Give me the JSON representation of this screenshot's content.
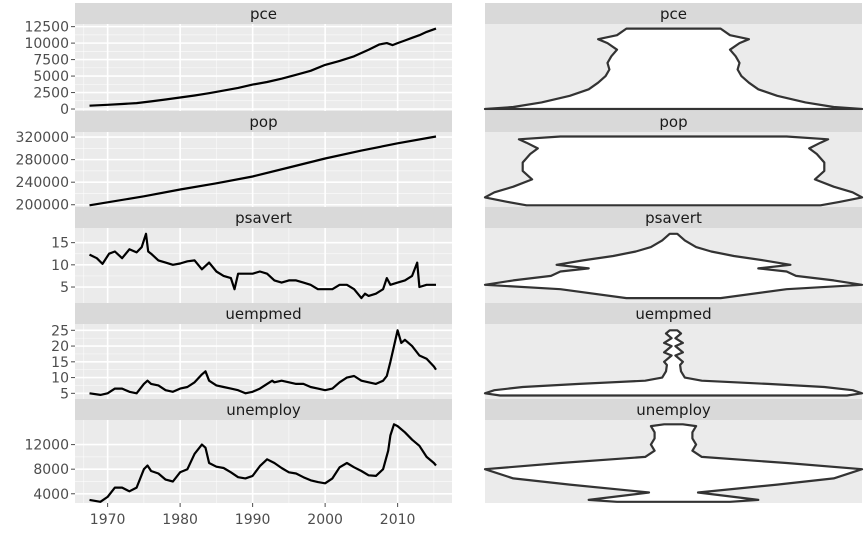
{
  "chart_data": [
    {
      "type": "line",
      "facets": [
        {
          "name": "pce",
          "ylim": [
            -300,
            12900
          ],
          "yticks": [
            0,
            2500,
            5000,
            7500,
            10000,
            12500
          ],
          "x": [
            1967.5,
            1970,
            1972,
            1974,
            1976,
            1978,
            1980,
            1982,
            1984,
            1986,
            1988,
            1990,
            1992,
            1994,
            1996,
            1998,
            2000,
            2001,
            2002,
            2004,
            2006,
            2007.5,
            2008.5,
            2009.3,
            2010,
            2011,
            2012,
            2013,
            2014,
            2015.3
          ],
          "values": [
            500,
            640,
            760,
            900,
            1150,
            1450,
            1750,
            2050,
            2400,
            2800,
            3200,
            3700,
            4100,
            4600,
            5200,
            5800,
            6700,
            7000,
            7300,
            8000,
            9000,
            9800,
            10000,
            9700,
            10000,
            10400,
            10800,
            11200,
            11700,
            12200
          ]
        },
        {
          "name": "pop",
          "ylim": [
            196000,
            329000
          ],
          "yticks": [
            200000,
            240000,
            280000,
            320000
          ],
          "x": [
            1967.5,
            1975,
            1980,
            1985,
            1990,
            1995,
            2000,
            2005,
            2010,
            2015.3
          ],
          "values": [
            199000,
            215000,
            227000,
            238000,
            250000,
            266000,
            282000,
            296000,
            309000,
            321000
          ]
        },
        {
          "name": "psavert",
          "ylim": [
            1.4,
            18.3
          ],
          "yticks": [
            5,
            10,
            15
          ],
          "x": [
            1967.5,
            1968.5,
            1969.3,
            1970.2,
            1971,
            1972,
            1973,
            1974,
            1974.7,
            1975.3,
            1975.6,
            1976,
            1977,
            1978,
            1979,
            1980,
            1981,
            1982,
            1983,
            1984,
            1985,
            1986,
            1987,
            1987.5,
            1988,
            1989,
            1990,
            1991,
            1992,
            1993,
            1994,
            1995,
            1996,
            1997,
            1998,
            1999,
            2000,
            2001,
            2002,
            2003,
            2004,
            2005,
            2005.5,
            2006,
            2007,
            2008,
            2008.5,
            2009,
            2010,
            2011,
            2012,
            2012.7,
            2013,
            2014,
            2015.3
          ],
          "values": [
            12.3,
            11.5,
            10.2,
            12.5,
            13.0,
            11.5,
            13.5,
            12.8,
            14.0,
            17.0,
            13.0,
            12.5,
            11.0,
            10.5,
            10.0,
            10.3,
            10.8,
            11.0,
            9.0,
            10.5,
            8.5,
            7.5,
            7.0,
            4.5,
            8.0,
            8.0,
            8.0,
            8.5,
            8.0,
            6.5,
            6.0,
            6.5,
            6.5,
            6.0,
            5.5,
            4.5,
            4.5,
            4.5,
            5.5,
            5.5,
            4.5,
            2.5,
            3.5,
            3.0,
            3.5,
            4.5,
            7.0,
            5.5,
            6.0,
            6.5,
            7.5,
            10.5,
            5.0,
            5.5,
            5.5
          ]
        },
        {
          "name": "uempmed",
          "ylim": [
            3.2,
            27.0
          ],
          "yticks": [
            5,
            10,
            15,
            20,
            25
          ],
          "x": [
            1967.5,
            1969,
            1970,
            1971,
            1972,
            1973,
            1974,
            1975,
            1975.5,
            1976,
            1977,
            1978,
            1979,
            1980,
            1981,
            1982,
            1983,
            1983.5,
            1984,
            1985,
            1986,
            1987,
            1988,
            1989,
            1990,
            1991,
            1992,
            1992.7,
            1993,
            1994,
            1995,
            1996,
            1997,
            1998,
            1999,
            2000,
            2001,
            2002,
            2003,
            2004,
            2005,
            2006,
            2007,
            2008,
            2008.5,
            2009,
            2009.5,
            2010,
            2010.5,
            2011,
            2012,
            2013,
            2014,
            2015,
            2015.3
          ],
          "values": [
            5.0,
            4.5,
            5.0,
            6.5,
            6.5,
            5.5,
            5.0,
            8.0,
            9.0,
            8.0,
            7.5,
            6.0,
            5.5,
            6.5,
            7.0,
            8.5,
            11.0,
            12.0,
            9.0,
            7.5,
            7.0,
            6.5,
            6.0,
            5.0,
            5.5,
            6.5,
            8.0,
            9.0,
            8.5,
            9.0,
            8.5,
            8.0,
            8.0,
            7.0,
            6.5,
            6.0,
            6.5,
            8.5,
            10.0,
            10.5,
            9.0,
            8.5,
            8.0,
            9.0,
            10.5,
            15.0,
            20.0,
            25.0,
            21.0,
            22.0,
            20.0,
            17.0,
            16.0,
            13.5,
            12.5
          ]
        },
        {
          "name": "unemploy",
          "ylim": [
            2500,
            16000
          ],
          "yticks": [
            4000,
            8000,
            12000
          ],
          "x": [
            1967.5,
            1969,
            1970,
            1971,
            1972,
            1973,
            1974,
            1975,
            1975.5,
            1976,
            1977,
            1978,
            1979,
            1980,
            1981,
            1982,
            1983,
            1983.5,
            1984,
            1985,
            1986,
            1987,
            1988,
            1989,
            1990,
            1991,
            1992,
            1993,
            1994,
            1995,
            1996,
            1997,
            1998,
            1999,
            2000,
            2001,
            2002,
            2003,
            2004,
            2005,
            2006,
            2007,
            2008,
            2008.7,
            2009,
            2009.5,
            2010,
            2011,
            2012,
            2013,
            2014,
            2015,
            2015.3
          ],
          "values": [
            3000,
            2700,
            3500,
            5000,
            5000,
            4400,
            5000,
            8000,
            8600,
            7700,
            7300,
            6300,
            6000,
            7500,
            8000,
            10500,
            12000,
            11500,
            9000,
            8400,
            8200,
            7500,
            6700,
            6500,
            6900,
            8500,
            9600,
            9000,
            8200,
            7500,
            7300,
            6700,
            6200,
            5900,
            5700,
            6500,
            8300,
            9000,
            8300,
            7700,
            7000,
            6900,
            8000,
            11000,
            13500,
            15300,
            15000,
            14000,
            12800,
            11800,
            10000,
            9000,
            8600
          ]
        }
      ],
      "xlim": [
        1965.5,
        2017.5
      ],
      "xticks": [
        1970,
        1980,
        1990,
        2000,
        2010
      ],
      "xlabel": "",
      "ylabel": "",
      "grid": true
    },
    {
      "type": "violin",
      "facets": [
        {
          "name": "pce",
          "ylim": [
            -300,
            12900
          ],
          "profile": [
            [
              0,
              1.0
            ],
            [
              300,
              0.85
            ],
            [
              1000,
              0.7
            ],
            [
              2000,
              0.55
            ],
            [
              3000,
              0.45
            ],
            [
              4000,
              0.4
            ],
            [
              5000,
              0.36
            ],
            [
              6000,
              0.34
            ],
            [
              7000,
              0.35
            ],
            [
              8000,
              0.33
            ],
            [
              9000,
              0.3
            ],
            [
              10000,
              0.35
            ],
            [
              10600,
              0.4
            ],
            [
              11200,
              0.3
            ],
            [
              12200,
              0.25
            ]
          ]
        },
        {
          "name": "pop",
          "ylim": [
            196000,
            329000
          ],
          "profile": [
            [
              199000,
              0.78
            ],
            [
              205000,
              0.88
            ],
            [
              213000,
              1.0
            ],
            [
              222000,
              0.95
            ],
            [
              232000,
              0.85
            ],
            [
              245000,
              0.75
            ],
            [
              260000,
              0.8
            ],
            [
              275000,
              0.8
            ],
            [
              290000,
              0.76
            ],
            [
              300000,
              0.72
            ],
            [
              310000,
              0.78
            ],
            [
              316000,
              0.82
            ],
            [
              321000,
              0.6
            ]
          ]
        },
        {
          "name": "psavert",
          "ylim": [
            1.4,
            18.3
          ],
          "profile": [
            [
              2.5,
              0.25
            ],
            [
              4.5,
              0.6
            ],
            [
              5.5,
              1.0
            ],
            [
              6.5,
              0.85
            ],
            [
              7.5,
              0.65
            ],
            [
              8.5,
              0.6
            ],
            [
              9.2,
              0.45
            ],
            [
              10,
              0.62
            ],
            [
              11,
              0.48
            ],
            [
              12,
              0.32
            ],
            [
              13,
              0.2
            ],
            [
              14,
              0.12
            ],
            [
              15.5,
              0.06
            ],
            [
              17,
              0.02
            ]
          ]
        },
        {
          "name": "uempmed",
          "ylim": [
            3.2,
            27.0
          ],
          "profile": [
            [
              4.3,
              0.92
            ],
            [
              5,
              1.0
            ],
            [
              6,
              0.95
            ],
            [
              7,
              0.8
            ],
            [
              8,
              0.5
            ],
            [
              9,
              0.15
            ],
            [
              10,
              0.06
            ],
            [
              12,
              0.04
            ],
            [
              14,
              0.035
            ],
            [
              15,
              0.05
            ],
            [
              17,
              0.01
            ],
            [
              18,
              0.05
            ],
            [
              20,
              0.01
            ],
            [
              21,
              0.05
            ],
            [
              22.5,
              0.01
            ],
            [
              24,
              0.04
            ],
            [
              25,
              0.02
            ]
          ]
        },
        {
          "name": "unemploy",
          "ylim": [
            2500,
            16000
          ],
          "profile": [
            [
              2700,
              0.3
            ],
            [
              3000,
              0.45
            ],
            [
              4200,
              0.13
            ],
            [
              5500,
              0.55
            ],
            [
              6500,
              0.85
            ],
            [
              8000,
              1.0
            ],
            [
              9000,
              0.6
            ],
            [
              10000,
              0.15
            ],
            [
              11000,
              0.1
            ],
            [
              12000,
              0.12
            ],
            [
              13000,
              0.1
            ],
            [
              14000,
              0.1
            ],
            [
              15000,
              0.12
            ],
            [
              15300,
              0.05
            ]
          ]
        }
      ],
      "grid": false
    }
  ]
}
